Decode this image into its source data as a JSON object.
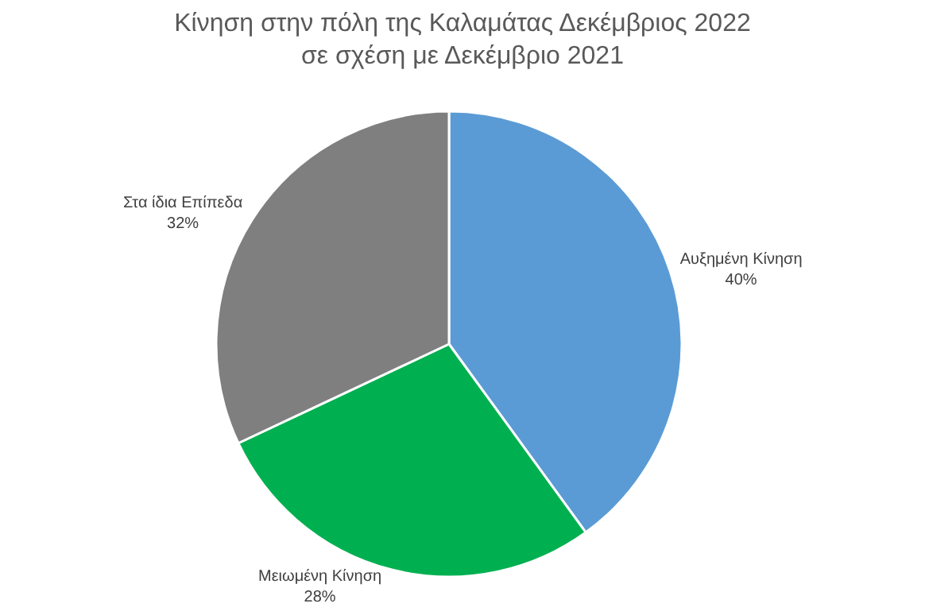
{
  "chart_data": {
    "type": "pie",
    "title": "Κίνηση στην πόλη της Καλαμάτας Δεκέμβριος 2022 σε σχέση με Δεκέμβριο 2021",
    "categories": [
      "Αυξημένη Κίνηση",
      "Μειωμένη Κίνηση",
      "Στα ίδια Επίπεδα"
    ],
    "values": [
      40,
      28,
      32
    ],
    "colors": [
      "#5b9bd5",
      "#00b050",
      "#7f7f7f"
    ],
    "value_labels": [
      "40%",
      "28%",
      "32%"
    ],
    "legend": false
  }
}
